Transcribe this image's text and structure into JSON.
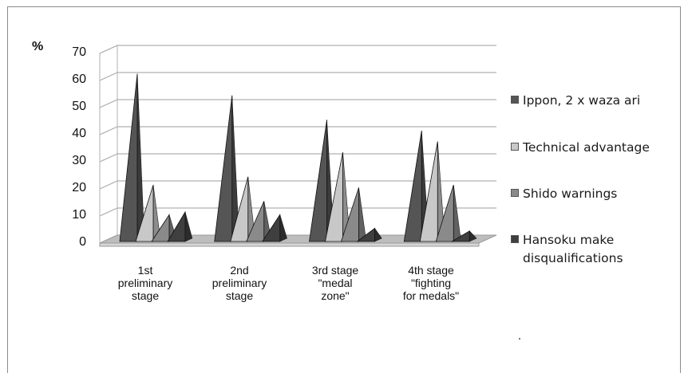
{
  "chart_data": {
    "type": "bar",
    "style": "3d-pyramid",
    "ylabel": "%",
    "ylim": [
      0,
      70
    ],
    "yticks": [
      0,
      10,
      20,
      30,
      40,
      50,
      60,
      70
    ],
    "grid": true,
    "legend_position": "right",
    "categories": [
      "1st\npreliminary\nstage",
      "2nd\npreliminary\nstage",
      "3rd stage\n\"medal\nzone\"",
      "4th stage\n\"fighting\nfor medals\""
    ],
    "series": [
      {
        "name": "Ippon, 2 x waza ari",
        "color": "#555555",
        "values": [
          61,
          53,
          44,
          40
        ]
      },
      {
        "name": "Technical advantage",
        "color": "#c8c8c8",
        "values": [
          20,
          23,
          32,
          36
        ]
      },
      {
        "name": "Shido warnings",
        "color": "#8a8a8a",
        "values": [
          9,
          14,
          19,
          20
        ]
      },
      {
        "name": "Hansoku make\ndisqualifications",
        "color": "#3f3f3f",
        "values": [
          10,
          9,
          4,
          3
        ]
      }
    ]
  },
  "colors": {
    "grid": "#b0b0b0",
    "wall": "#ffffff",
    "floor": "#bdbdbd",
    "frame": "#8c8c8c"
  }
}
